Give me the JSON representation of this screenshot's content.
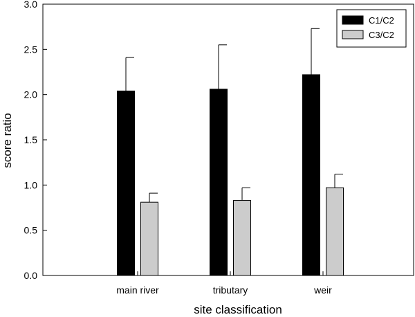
{
  "chart_data": {
    "type": "bar",
    "title": "",
    "xlabel": "site classification",
    "ylabel": "score ratio",
    "categories": [
      "main river",
      "tributary",
      "weir"
    ],
    "ylim": [
      0,
      3.0
    ],
    "yticks": [
      0.0,
      0.5,
      1.0,
      1.5,
      2.0,
      2.5,
      3.0
    ],
    "ytick_labels": [
      "0.0",
      "0.5",
      "1.0",
      "1.5",
      "2.0",
      "2.5",
      "3.0"
    ],
    "grid": false,
    "legend_position": "top-right",
    "series": [
      {
        "name": "C1/C2",
        "color": "#000000",
        "values": [
          2.04,
          2.06,
          2.22
        ],
        "error_upper": [
          2.41,
          2.55,
          2.73
        ]
      },
      {
        "name": "C3/C2",
        "color": "#cccccc",
        "values": [
          0.81,
          0.83,
          0.97
        ],
        "error_upper": [
          0.91,
          0.97,
          1.12
        ]
      }
    ]
  }
}
